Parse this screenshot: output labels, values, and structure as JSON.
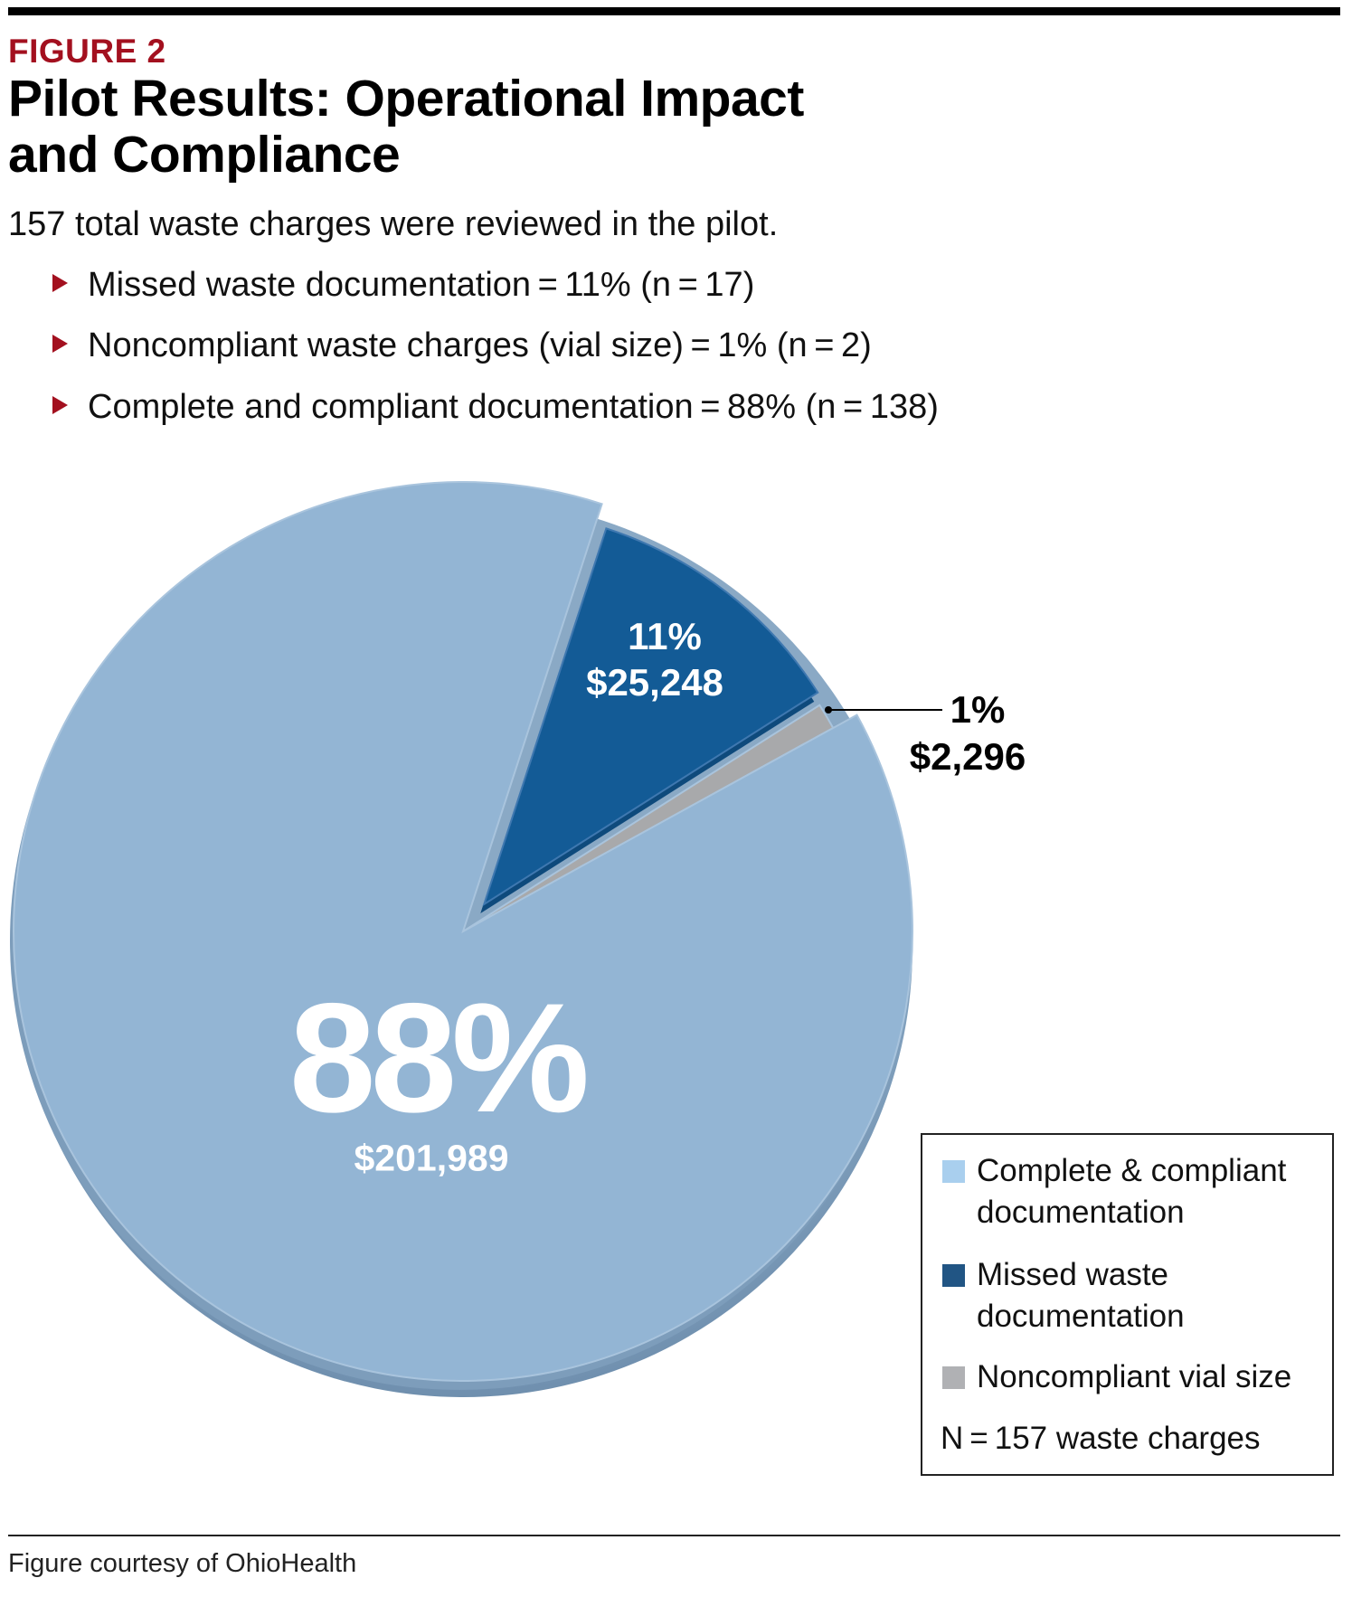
{
  "figure_label": "FIGURE 2",
  "title_line1": "Pilot Results: Operational Impact",
  "title_line2": "and Compliance",
  "subtitle": "157 total waste charges were reviewed in the pilot.",
  "bullets": [
    "Missed waste documentation = 11% (n = 17)",
    "Noncompliant waste charges (vial size) = 1% (n = 2)",
    "Complete and compliant documentation = 88% (n = 138)"
  ],
  "colors": {
    "accent_red": "#a3101f",
    "complete": "#93b5d4",
    "missed": "#135b96",
    "noncompliant": "#a8a9ab"
  },
  "chart_data": {
    "type": "pie",
    "style": "3d-exploded",
    "slices": [
      {
        "name": "Missed waste documentation",
        "percent": 11,
        "percent_label": "11%",
        "amount_label": "$25,248",
        "n": 17,
        "color": "#135b96",
        "exploded": true
      },
      {
        "name": "Noncompliant vial size",
        "percent": 1,
        "percent_label": "1%",
        "amount_label": "$2,296",
        "n": 2,
        "color": "#a8a9ab"
      },
      {
        "name": "Complete & compliant documentation",
        "percent": 88,
        "percent_label": "88%",
        "amount_label": "$201,989",
        "n": 138,
        "color": "#93b5d4"
      }
    ],
    "legend": {
      "placement": "bottom-right",
      "items": [
        {
          "label": "Complete & compliant documentation",
          "color": "#a9cfee"
        },
        {
          "label": "Missed waste documentation",
          "color": "#215584"
        },
        {
          "label": "Noncompliant vial size",
          "color": "#b0b1b4"
        }
      ],
      "note": "N = 157 waste charges"
    }
  },
  "footer": "Figure courtesy of OhioHealth"
}
